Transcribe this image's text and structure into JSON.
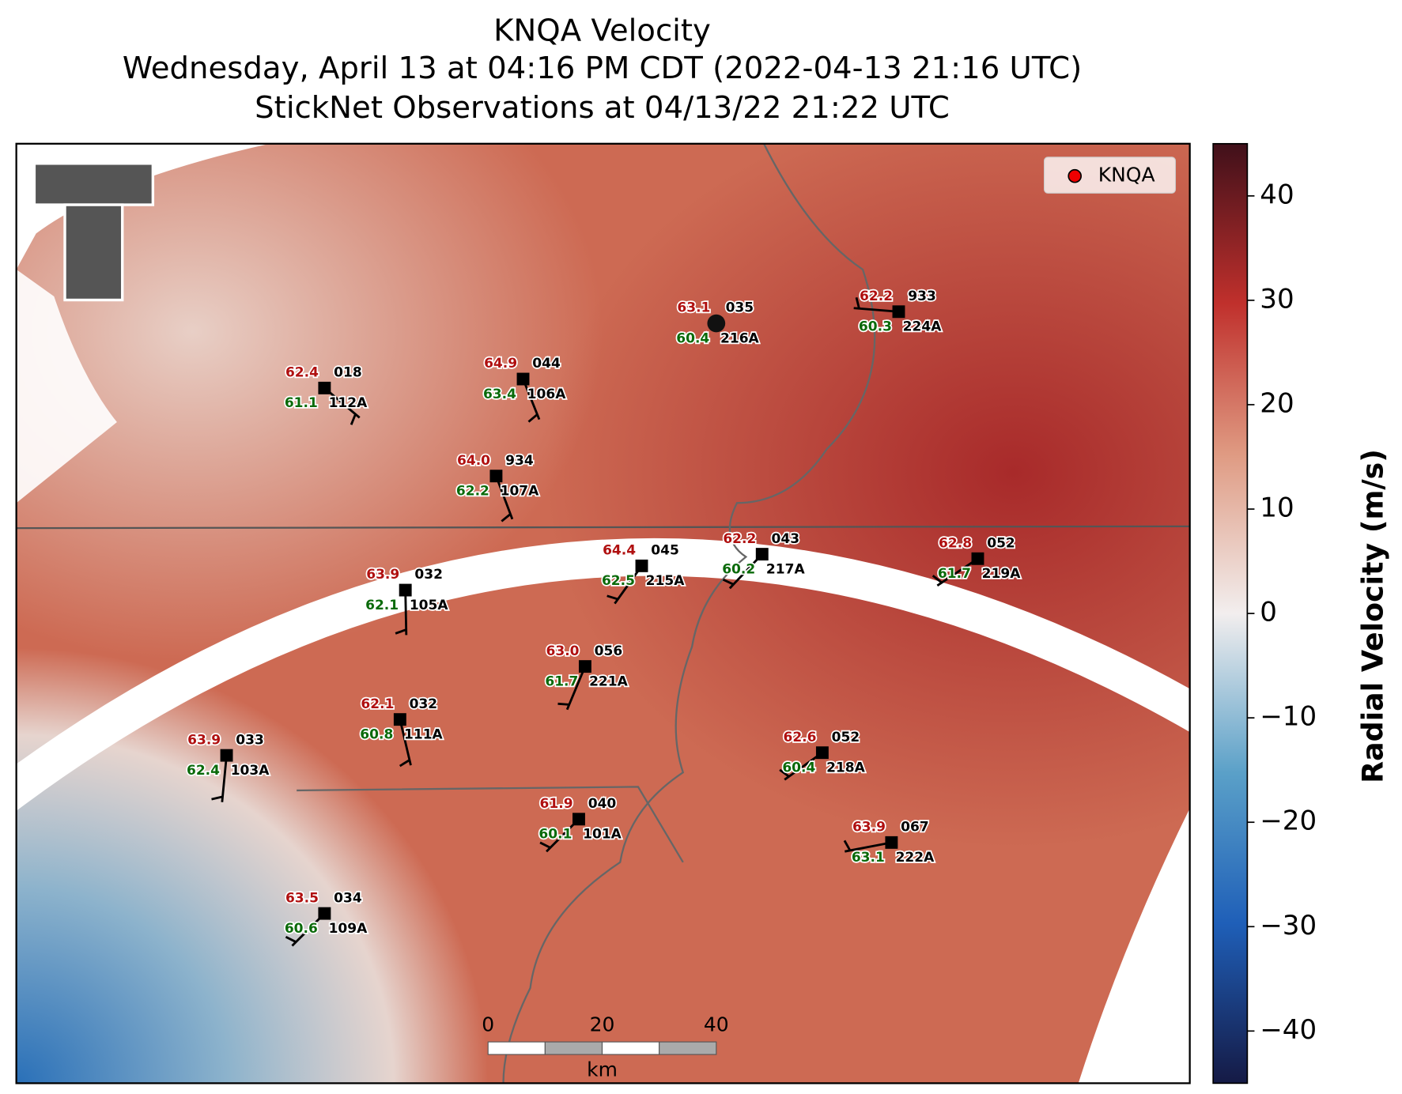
{
  "title": "KNQA Velocity",
  "subtitle": "Wednesday, April 13 at 04:16 PM CDT (2022-04-13 21:16 UTC)",
  "subtitle2": "StickNet Observations at 04/13/22 21:22 UTC",
  "legend": "KNQA",
  "colorbar": {
    "label": "Radial Velocity (m/s)",
    "lim": [
      -45,
      45
    ],
    "ticks": [
      40,
      30,
      20,
      10,
      0,
      {
        "value": -10,
        "label": "−10"
      },
      {
        "value": -20,
        "label": "−20"
      },
      {
        "value": -30,
        "label": "−30"
      },
      {
        "value": -40,
        "label": "−40"
      }
    ]
  },
  "scalebar": {
    "labels": [
      "0",
      "20",
      "40"
    ],
    "unit": "km"
  },
  "stations": [
    {
      "temperature": "62.4",
      "direction": "018",
      "dewpoint": "61.1",
      "id": "112A"
    },
    {
      "temperature": "64.9",
      "direction": "044",
      "dewpoint": "63.4",
      "id": "106A"
    },
    {
      "temperature": "64.0",
      "direction": "934",
      "dewpoint": "62.2",
      "id": "107A"
    },
    {
      "temperature": "63.1",
      "direction": "035",
      "dewpoint": "60.4",
      "id": "216A"
    },
    {
      "temperature": "62.2",
      "direction": "933",
      "dewpoint": "60.3",
      "id": "224A"
    },
    {
      "temperature": "63.9",
      "direction": "032",
      "dewpoint": "62.1",
      "id": "105A"
    },
    {
      "temperature": "64.4",
      "direction": "045",
      "dewpoint": "62.5",
      "id": "215A"
    },
    {
      "temperature": "62.2",
      "direction": "043",
      "dewpoint": "60.2",
      "id": "217A"
    },
    {
      "temperature": "62.8",
      "direction": "052",
      "dewpoint": "61.7",
      "id": "219A"
    },
    {
      "temperature": "63.0",
      "direction": "056",
      "dewpoint": "61.7",
      "id": "221A"
    },
    {
      "temperature": "62.1",
      "direction": "032",
      "dewpoint": "60.8",
      "id": "111A"
    },
    {
      "temperature": "63.9",
      "direction": "033",
      "dewpoint": "62.4",
      "id": "103A"
    },
    {
      "temperature": "62.6",
      "direction": "052",
      "dewpoint": "60.4",
      "id": "218A"
    },
    {
      "temperature": "61.9",
      "direction": "040",
      "dewpoint": "60.1",
      "id": "101A"
    },
    {
      "temperature": "63.9",
      "direction": "067",
      "dewpoint": "63.1",
      "id": "222A"
    },
    {
      "temperature": "63.5",
      "direction": "034",
      "dewpoint": "60.6",
      "id": "109A"
    }
  ]
}
